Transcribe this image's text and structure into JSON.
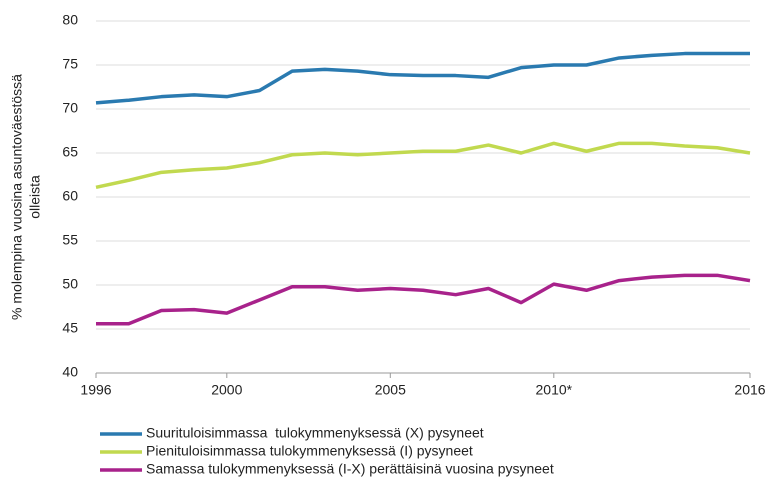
{
  "chart_data": {
    "type": "line",
    "y_label_lines": [
      "% molempina vuosina asuntoväestössä",
      "olleista"
    ],
    "x": [
      1996,
      1997,
      1998,
      1999,
      2000,
      2001,
      2002,
      2003,
      2004,
      2005,
      2006,
      2007,
      2008,
      2009,
      2010,
      2011,
      2012,
      2013,
      2014,
      2015,
      2016
    ],
    "series": [
      {
        "name": "Suurituloisimmassa  tulokymmenyksessä (X) pysyneet",
        "color": "#2a7ab0",
        "values": [
          70.7,
          71.0,
          71.4,
          71.6,
          71.4,
          72.1,
          74.3,
          74.5,
          74.3,
          73.9,
          73.8,
          73.8,
          73.6,
          74.7,
          75.0,
          75.0,
          75.8,
          76.1,
          76.3,
          76.3,
          76.3
        ]
      },
      {
        "name": "Pienituloisimmassa tulokymmenyksessä (I) pysyneet",
        "color": "#c1d94f",
        "values": [
          61.1,
          61.9,
          62.8,
          63.1,
          63.3,
          63.9,
          64.8,
          65.0,
          64.8,
          65.0,
          65.2,
          65.2,
          65.9,
          65.0,
          66.1,
          65.2,
          66.1,
          66.1,
          65.8,
          65.6,
          65.0
        ]
      },
      {
        "name": "Samassa tulokymmenyksessä (I-X) perättäisinä vuosina pysyneet",
        "color": "#a8228b",
        "values": [
          45.6,
          45.6,
          47.1,
          47.2,
          46.8,
          48.3,
          49.8,
          49.8,
          49.4,
          49.6,
          49.4,
          48.9,
          49.6,
          48.0,
          50.1,
          49.4,
          50.5,
          50.9,
          51.1,
          51.1,
          50.5
        ]
      }
    ],
    "xlim": [
      1996,
      2016
    ],
    "xticks": [
      1996,
      2000,
      2005,
      {
        "value": 2010,
        "label": "2010*"
      },
      2016
    ],
    "ylim": [
      40,
      80
    ],
    "yticks": [
      40,
      45,
      50,
      55,
      60,
      65,
      70,
      75,
      80
    ],
    "grid": true,
    "legend": "bottom"
  }
}
